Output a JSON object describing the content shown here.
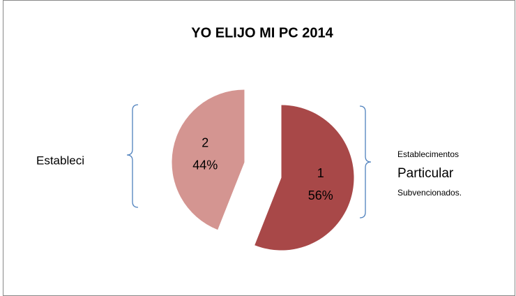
{
  "chart_data": {
    "type": "pie",
    "title": "YO ELIJO MI PC 2014",
    "categories": [
      "1",
      "2"
    ],
    "values": [
      56,
      44
    ],
    "value_labels": [
      "56%",
      "44%"
    ],
    "colors": [
      "#a84848",
      "#d49591"
    ],
    "annotations": [
      "Estableci",
      "Establecimentos",
      "Particular",
      "Subvencionados."
    ]
  }
}
